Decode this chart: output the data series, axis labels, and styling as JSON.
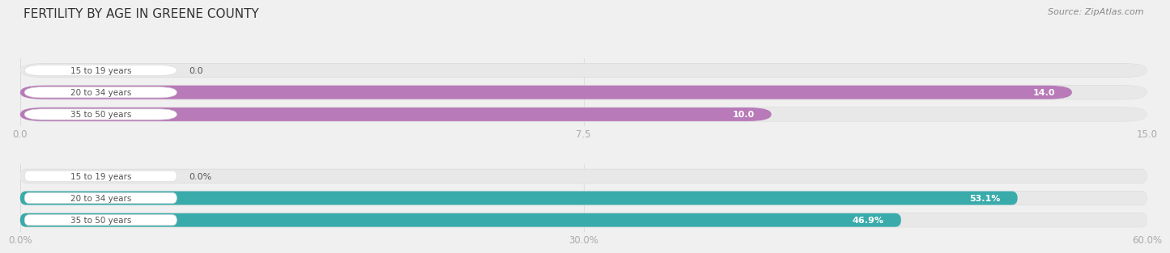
{
  "title": "FERTILITY BY AGE IN GREENE COUNTY",
  "source": "Source: ZipAtlas.com",
  "top_chart": {
    "categories": [
      "15 to 19 years",
      "20 to 34 years",
      "35 to 50 years"
    ],
    "values": [
      0.0,
      14.0,
      10.0
    ],
    "xlim": [
      0.0,
      15.0
    ],
    "xticks": [
      0.0,
      7.5,
      15.0
    ],
    "xtick_labels": [
      "0.0",
      "7.5",
      "15.0"
    ],
    "bar_color": "#b87ab8",
    "bar_bg_color": "#e8e8e8",
    "value_labels": [
      "0.0",
      "14.0",
      "10.0"
    ],
    "value_inside": [
      false,
      true,
      true
    ]
  },
  "bottom_chart": {
    "categories": [
      "15 to 19 years",
      "20 to 34 years",
      "35 to 50 years"
    ],
    "values": [
      0.0,
      53.1,
      46.9
    ],
    "xlim": [
      0.0,
      60.0
    ],
    "xticks": [
      0.0,
      30.0,
      60.0
    ],
    "xtick_labels": [
      "0.0%",
      "30.0%",
      "60.0%"
    ],
    "bar_color": "#3aabab",
    "bar_bg_color": "#e8e8e8",
    "value_labels": [
      "0.0%",
      "53.1%",
      "46.9%"
    ],
    "value_inside": [
      false,
      true,
      true
    ]
  },
  "label_bg_color": "#ffffff",
  "label_text_color": "#555555",
  "title_color": "#333333",
  "tick_color": "#aaaaaa",
  "background_color": "#f0f0f0",
  "bar_outer_color": "#d8d8d8"
}
